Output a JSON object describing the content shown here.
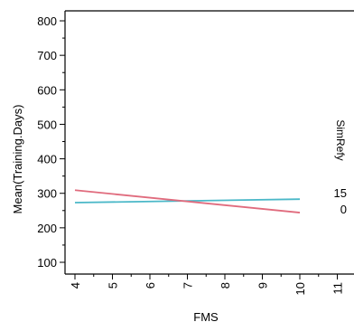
{
  "chart_data": {
    "type": "line",
    "title": "",
    "xlabel": "FMS",
    "ylabel": "Mean(Training.Days)",
    "xlim": [
      3.9,
      11.3
    ],
    "ylim": [
      75,
      815
    ],
    "x_ticks": [
      4,
      5,
      6,
      7,
      8,
      9,
      10,
      11
    ],
    "y_ticks": [
      100,
      200,
      300,
      400,
      500,
      600,
      700,
      800
    ],
    "grid": false,
    "legend": {
      "title": "SimRefy",
      "placement": "right",
      "entries": [
        "15",
        "0"
      ]
    },
    "series": [
      {
        "name": "15",
        "color": "#4bb8c8",
        "x": [
          4,
          10
        ],
        "y": [
          273,
          283
        ]
      },
      {
        "name": "0",
        "color": "#e06b7d",
        "x": [
          4,
          10
        ],
        "y": [
          309,
          244
        ]
      }
    ]
  }
}
